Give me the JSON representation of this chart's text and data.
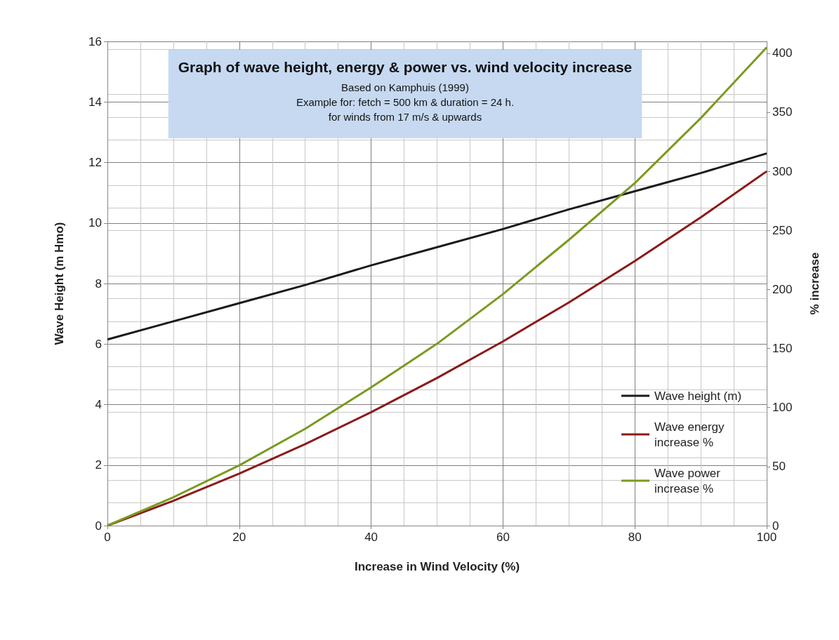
{
  "chart_data": {
    "type": "line",
    "title": "Graph of wave height, energy & power vs. wind velocity increase",
    "subtitle": "Based on Kamphuis (1999)\nExample for: fetch = 500 km & duration = 24 h.\nfor winds from 17 m/s & upwards",
    "xlabel": "Increase in Wind Velocity (%)",
    "ylabel": "Wave Height (m Hmo)",
    "y2label": "% increase",
    "x": [
      0,
      10,
      20,
      30,
      40,
      50,
      60,
      70,
      80,
      90,
      100
    ],
    "series": [
      {
        "name": "Wave height (m)",
        "color": "#1a1a1a",
        "values": [
          6.15,
          6.75,
          7.35,
          7.95,
          8.6,
          9.2,
          9.8,
          10.45,
          11.05,
          11.65,
          12.3
        ]
      },
      {
        "name": "Wave energy increase %",
        "color": "#8b1a1a",
        "axis": "y2",
        "values": [
          0,
          21,
          44,
          69,
          96,
          125,
          156,
          189,
          224,
          261,
          300
        ]
      },
      {
        "name": "Wave power increase %",
        "color": "#7a9a1e",
        "axis": "y2",
        "values": [
          0,
          24,
          51,
          82,
          117,
          154,
          196,
          242,
          290,
          345,
          405
        ]
      }
    ],
    "xlim": [
      0,
      100
    ],
    "xticks": [
      0,
      20,
      40,
      60,
      80,
      100
    ],
    "ylim": [
      0,
      16
    ],
    "yticks": [
      0,
      2,
      4,
      6,
      8,
      10,
      12,
      14,
      16
    ],
    "y2lim": [
      0,
      410
    ],
    "y2ticks": [
      0,
      50,
      100,
      150,
      200,
      250,
      300,
      350,
      400
    ],
    "grid": true,
    "legend": "right",
    "marker": "none",
    "line_style": "solid"
  }
}
